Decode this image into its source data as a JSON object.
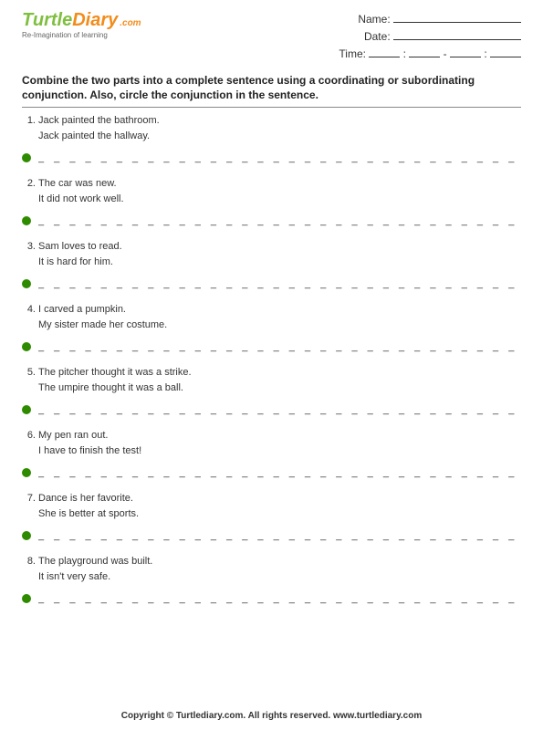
{
  "logo": {
    "part1": "Turtle",
    "part2": "Diary",
    "suffix": ".com",
    "tagline": "Re-Imagination of learning"
  },
  "info": {
    "name_label": "Name:",
    "date_label": "Date:",
    "time_label": "Time:"
  },
  "instructions": "Combine the two parts into a complete sentence using a coordinating or subordinating conjunction. Also, circle the conjunction in the sentence.",
  "questions": [
    {
      "num": "1.",
      "line1": "Jack painted the bathroom.",
      "line2": "Jack painted the hallway."
    },
    {
      "num": "2.",
      "line1": "The car was new.",
      "line2": "It did not work well."
    },
    {
      "num": "3.",
      "line1": "Sam loves to read.",
      "line2": "It is hard for him."
    },
    {
      "num": "4.",
      "line1": "I carved a pumpkin.",
      "line2": "My sister made her costume."
    },
    {
      "num": "5.",
      "line1": "The pitcher thought it was a strike.",
      "line2": "The umpire thought it was a ball."
    },
    {
      "num": "6.",
      "line1": "My pen ran out.",
      "line2": "I have to finish the test!"
    },
    {
      "num": "7.",
      "line1": "Dance is her favorite.",
      "line2": "She is better at sports."
    },
    {
      "num": "8.",
      "line1": "The playground was built.",
      "line2": " It isn't very safe."
    }
  ],
  "dash_line": "_ _ _ _ _ _ _ _ _ _ _ _ _ _ _ _ _ _ _ _ _ _ _ _ _ _ _ _ _ _ _ _ _ _ _ _ _ _ _ _ _",
  "footer": "Copyright © Turtlediary.com. All rights reserved. www.turtlediary.com",
  "colors": {
    "bullet": "#2e8b00",
    "logo_green": "#7fbf3f",
    "logo_orange": "#f28c1a"
  }
}
